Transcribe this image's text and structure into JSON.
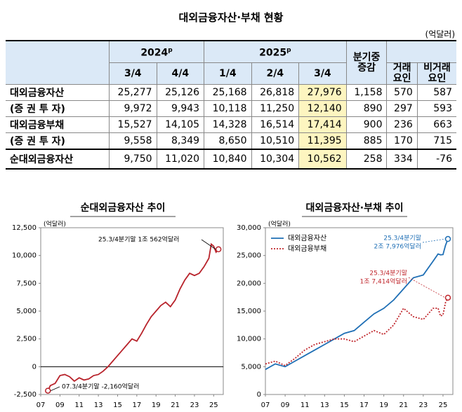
{
  "header": {
    "title": "대외금융자산·부채 현황",
    "unit": "(억달러)"
  },
  "table": {
    "years": [
      {
        "text": "2024",
        "sup": "p"
      },
      {
        "text": "2025",
        "sup": "p"
      }
    ],
    "quarters": [
      "3/4",
      "4/4",
      "1/4",
      "2/4",
      "3/4"
    ],
    "change": "분기중\n증감",
    "factors": [
      "거래\n요인",
      "비거래\n요인"
    ],
    "rows": [
      [
        "대외금융자산",
        "25,277",
        "25,126",
        "25,168",
        "26,818",
        "27,976",
        "1,158",
        "570",
        "587"
      ],
      [
        "(증 권 투 자)",
        "9,972",
        "9,943",
        "10,118",
        "11,250",
        "12,140",
        "890",
        "297",
        "593"
      ],
      [
        "대외금융부채",
        "15,527",
        "14,105",
        "14,328",
        "16,514",
        "17,414",
        "900",
        "236",
        "663"
      ],
      [
        "(증 권 투 자)",
        "9,558",
        "8,349",
        "8,650",
        "10,510",
        "11,395",
        "885",
        "170",
        "715"
      ],
      [
        "순대외금융자산",
        "9,750",
        "11,020",
        "10,840",
        "10,304",
        "10,562",
        "258",
        "334",
        "-76"
      ]
    ]
  },
  "chart_data": [
    {
      "type": "line",
      "title": "순대외금융자산 추이",
      "unit": "(억달러)",
      "color": "#b8232b",
      "x": [
        7.75,
        8,
        8.5,
        9,
        9.5,
        10,
        10.5,
        11,
        11.5,
        12,
        12.5,
        13,
        13.5,
        14,
        14.5,
        15,
        15.5,
        16,
        16.5,
        17,
        17.5,
        18,
        18.5,
        19,
        19.5,
        20,
        20.5,
        21,
        21.5,
        22,
        22.5,
        23,
        23.5,
        24,
        24.5,
        24.75,
        25,
        25.25,
        25.5
      ],
      "values": [
        -2160,
        -1700,
        -1500,
        -800,
        -700,
        -900,
        -1300,
        -1000,
        -1200,
        -1100,
        -800,
        -700,
        -400,
        0,
        500,
        1000,
        1500,
        2000,
        2500,
        2300,
        3000,
        3800,
        4500,
        5000,
        5500,
        5800,
        5400,
        6000,
        7000,
        7800,
        8400,
        8200,
        8400,
        9000,
        9750,
        11020,
        10840,
        10304,
        10562
      ],
      "xlim": [
        7,
        26
      ],
      "xticks": [
        {
          "value": 7,
          "label": "07"
        },
        {
          "value": 9,
          "label": "09"
        },
        11,
        13,
        15,
        17,
        19,
        21,
        23,
        25
      ],
      "ylim": [
        -2500,
        12500
      ],
      "yticks": [
        {
          "value": -2500,
          "label": "-2,500"
        },
        0,
        {
          "value": 2500,
          "label": "2,500"
        },
        {
          "value": 5000,
          "label": "5,000"
        },
        {
          "value": 7500,
          "label": "7,500"
        },
        {
          "value": 10000,
          "label": "10,000"
        },
        {
          "value": 12500,
          "label": "12,500"
        }
      ],
      "annotations": [
        [
          "25.3/4분기말 1조 562억달러"
        ],
        [
          "07.3/4분기말 -2,160억달러"
        ]
      ]
    },
    {
      "type": "line",
      "title": "대외금융자산·부채 추이",
      "unit": "(억달러)",
      "x": [
        7,
        8,
        9,
        10,
        11,
        12,
        13,
        14,
        15,
        16,
        17,
        18,
        19,
        20,
        21,
        22,
        23,
        24,
        24.5,
        24.75,
        25,
        25.25,
        25.5
      ],
      "series": [
        {
          "name": "대외금융자산",
          "color": "#1f6fb5",
          "dash": false,
          "values": [
            4500,
            5500,
            5000,
            6000,
            7000,
            8000,
            9000,
            10000,
            11000,
            11500,
            13000,
            14500,
            15500,
            17000,
            19000,
            21000,
            21500,
            24000,
            25277,
            25126,
            25168,
            26818,
            27976
          ]
        },
        {
          "name": "대외금융부채",
          "color": "#c0272d",
          "dash": true,
          "values": [
            5500,
            6000,
            5200,
            6500,
            8000,
            9000,
            9500,
            10000,
            10000,
            9500,
            10500,
            11500,
            10800,
            12500,
            15500,
            14000,
            13500,
            15500,
            15527,
            14105,
            14328,
            16514,
            17414
          ]
        }
      ],
      "xlim": [
        7,
        26
      ],
      "xticks": [
        {
          "value": 7,
          "label": "07"
        },
        {
          "value": 9,
          "label": "09"
        },
        11,
        13,
        15,
        17,
        19,
        21,
        23,
        25
      ],
      "ylim": [
        0,
        30000
      ],
      "yticks": [
        0,
        {
          "value": 5000,
          "label": "5,000"
        },
        {
          "value": 10000,
          "label": "10,000"
        },
        {
          "value": 15000,
          "label": "15,000"
        },
        {
          "value": 20000,
          "label": "20,000"
        },
        {
          "value": 25000,
          "label": "25,000"
        },
        {
          "value": 30000,
          "label": "30,000"
        }
      ],
      "annotations": [
        [
          "25.3/4분기말",
          "2조 7,976억달러"
        ],
        [
          "25.3/4분기말",
          "1조 7,414억달러"
        ]
      ]
    }
  ]
}
